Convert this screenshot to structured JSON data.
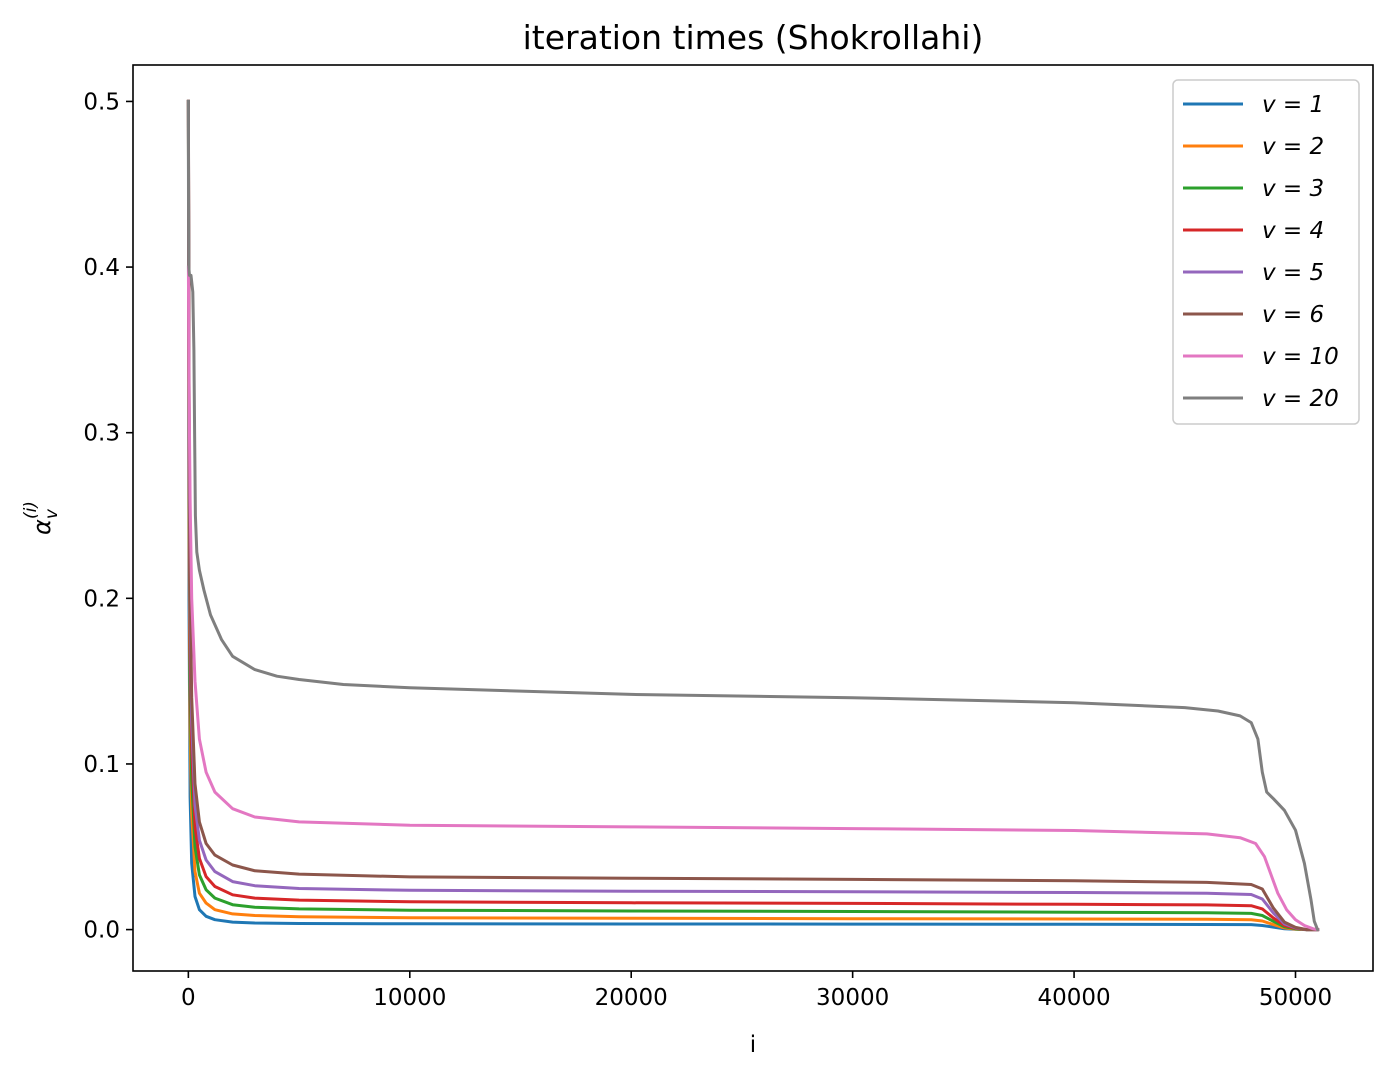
{
  "chart_data": {
    "type": "line",
    "title": "iteration times (Shokrollahi)",
    "xlabel": "i",
    "ylabel": "α_v^(i)",
    "xlim": [
      -2500,
      53500
    ],
    "ylim": [
      -0.025,
      0.522
    ],
    "x_ticks": [
      0,
      10000,
      20000,
      30000,
      40000,
      50000
    ],
    "x_tick_labels": [
      "0",
      "10000",
      "20000",
      "30000",
      "40000",
      "50000"
    ],
    "y_ticks": [
      0.0,
      0.1,
      0.2,
      0.3,
      0.4,
      0.5
    ],
    "y_tick_labels": [
      "0.0",
      "0.1",
      "0.2",
      "0.3",
      "0.4",
      "0.5"
    ],
    "grid": false,
    "legend_position": "upper right",
    "series": [
      {
        "name": "v = 1",
        "color": "#1f77b4",
        "x": [
          0,
          30,
          80,
          150,
          300,
          500,
          800,
          1200,
          2000,
          3000,
          5000,
          10000,
          20000,
          30000,
          40000,
          46000,
          48000,
          48500,
          49000,
          49500,
          50000,
          50500,
          51000
        ],
        "y": [
          0.5,
          0.2,
          0.08,
          0.04,
          0.02,
          0.012,
          0.008,
          0.006,
          0.0045,
          0.004,
          0.0037,
          0.0035,
          0.0034,
          0.0033,
          0.0032,
          0.0031,
          0.003,
          0.0025,
          0.0015,
          0.0005,
          0.0002,
          0.0,
          0.0
        ]
      },
      {
        "name": "v = 2",
        "color": "#ff7f0e",
        "x": [
          0,
          30,
          80,
          150,
          300,
          500,
          800,
          1200,
          2000,
          3000,
          5000,
          10000,
          20000,
          30000,
          40000,
          46000,
          48000,
          48500,
          49000,
          49500,
          50000,
          50500,
          51000
        ],
        "y": [
          0.5,
          0.25,
          0.12,
          0.07,
          0.035,
          0.022,
          0.016,
          0.012,
          0.0095,
          0.0085,
          0.0078,
          0.0072,
          0.0068,
          0.0066,
          0.0064,
          0.0062,
          0.006,
          0.0052,
          0.003,
          0.001,
          0.0003,
          0.0,
          0.0
        ]
      },
      {
        "name": "v = 3",
        "color": "#2ca02c",
        "x": [
          0,
          30,
          80,
          150,
          300,
          500,
          800,
          1200,
          2000,
          3000,
          5000,
          10000,
          20000,
          30000,
          40000,
          46000,
          48000,
          48500,
          49000,
          49500,
          50000,
          50500,
          51000
        ],
        "y": [
          0.5,
          0.28,
          0.15,
          0.09,
          0.05,
          0.033,
          0.024,
          0.019,
          0.015,
          0.0135,
          0.0125,
          0.0117,
          0.0112,
          0.0109,
          0.0105,
          0.0102,
          0.0098,
          0.0085,
          0.005,
          0.0017,
          0.0005,
          0.0,
          0.0
        ]
      },
      {
        "name": "v = 4",
        "color": "#d62728",
        "x": [
          0,
          30,
          80,
          150,
          300,
          500,
          800,
          1200,
          2000,
          3000,
          5000,
          10000,
          20000,
          30000,
          40000,
          46000,
          48000,
          48500,
          49000,
          49500,
          50000,
          50500,
          51000
        ],
        "y": [
          0.5,
          0.3,
          0.17,
          0.11,
          0.062,
          0.043,
          0.032,
          0.026,
          0.021,
          0.019,
          0.0178,
          0.0168,
          0.0162,
          0.0158,
          0.0153,
          0.0149,
          0.0144,
          0.0125,
          0.007,
          0.0025,
          0.0008,
          0.0,
          0.0
        ]
      },
      {
        "name": "v = 5",
        "color": "#9467bd",
        "x": [
          0,
          30,
          80,
          150,
          300,
          500,
          800,
          1200,
          2000,
          3000,
          5000,
          10000,
          20000,
          30000,
          40000,
          46000,
          48000,
          48500,
          49000,
          49500,
          50000,
          50500,
          51000
        ],
        "y": [
          0.5,
          0.32,
          0.19,
          0.125,
          0.075,
          0.054,
          0.042,
          0.035,
          0.029,
          0.0265,
          0.0248,
          0.0237,
          0.0232,
          0.0228,
          0.0224,
          0.022,
          0.0212,
          0.0185,
          0.01,
          0.0035,
          0.001,
          0.0,
          0.0
        ]
      },
      {
        "name": "v = 6",
        "color": "#8c564b",
        "x": [
          0,
          30,
          80,
          150,
          300,
          500,
          800,
          1200,
          2000,
          3000,
          5000,
          10000,
          20000,
          30000,
          40000,
          46000,
          48000,
          48500,
          49000,
          49500,
          50000,
          50500,
          51000
        ],
        "y": [
          0.5,
          0.34,
          0.21,
          0.14,
          0.088,
          0.065,
          0.052,
          0.045,
          0.039,
          0.0355,
          0.0335,
          0.0318,
          0.031,
          0.0303,
          0.0295,
          0.0285,
          0.0272,
          0.0245,
          0.013,
          0.0045,
          0.0013,
          0.0,
          0.0
        ]
      },
      {
        "name": "v = 10",
        "color": "#e377c2",
        "x": [
          0,
          30,
          80,
          150,
          300,
          500,
          800,
          1200,
          2000,
          3000,
          5000,
          10000,
          20000,
          30000,
          40000,
          46000,
          47500,
          48200,
          48600,
          48900,
          49200,
          49600,
          50000,
          50400,
          50800,
          51000
        ],
        "y": [
          0.4,
          0.33,
          0.26,
          0.2,
          0.15,
          0.115,
          0.095,
          0.083,
          0.073,
          0.068,
          0.065,
          0.063,
          0.062,
          0.061,
          0.0598,
          0.0578,
          0.0555,
          0.052,
          0.044,
          0.033,
          0.022,
          0.012,
          0.006,
          0.0025,
          0.0005,
          0.0
        ]
      },
      {
        "name": "v = 20",
        "color": "#7f7f7f",
        "x": [
          0,
          5,
          20,
          50,
          120,
          200,
          250,
          280,
          320,
          380,
          500,
          700,
          1000,
          1500,
          2000,
          3000,
          4000,
          5000,
          7000,
          10000,
          20000,
          30000,
          40000,
          45000,
          46500,
          47500,
          48000,
          48300,
          48500,
          48700,
          49000,
          49500,
          50000,
          50400,
          50700,
          50850,
          51000
        ],
        "y": [
          0.5,
          0.44,
          0.4,
          0.395,
          0.395,
          0.385,
          0.35,
          0.3,
          0.25,
          0.228,
          0.217,
          0.205,
          0.19,
          0.175,
          0.165,
          0.157,
          0.153,
          0.151,
          0.148,
          0.146,
          0.142,
          0.14,
          0.137,
          0.134,
          0.132,
          0.129,
          0.125,
          0.115,
          0.095,
          0.083,
          0.079,
          0.072,
          0.06,
          0.04,
          0.018,
          0.005,
          0.0
        ]
      }
    ]
  }
}
